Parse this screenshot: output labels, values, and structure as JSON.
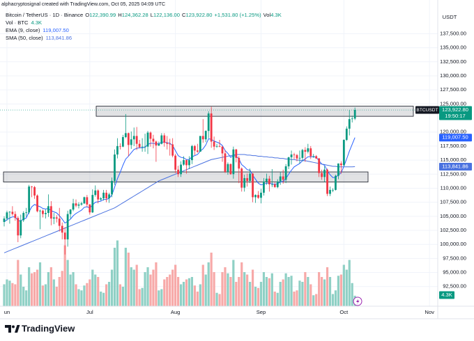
{
  "watermark": "alphacryptosignal created with TradingView.com, Oct 05, 2025 04:09 UTC",
  "logo": "TradingView",
  "chart_data": {
    "type": "candlestick",
    "currency": "USDT",
    "symbol": "Bitcoin / TetherUS · 1D · Binance",
    "header_fields": [
      {
        "key": "O",
        "text": "122,390.99"
      },
      {
        "key": "H",
        "text": "124,362.28"
      },
      {
        "key": "L",
        "text": "122,136.00"
      }
    ],
    "close_key": "C",
    "change": "+1,531.80 (+1.25%)",
    "vol_key": "Vol",
    "symbol_tag": "BTCUSDT",
    "countdown": "19:50:17",
    "last_price": {
      "value": 123922.8,
      "label": "123,922.80"
    },
    "up_color": "#089981",
    "down_color": "#f23645",
    "volume_up_color": "#8fd0c5",
    "volume_down_color": "#f7a9a8",
    "ylim": [
      89000,
      143500
    ],
    "yticks": [
      {
        "value": 92500,
        "label": "92,500.00"
      },
      {
        "value": 95000,
        "label": "95,000.00"
      },
      {
        "value": 97500,
        "label": "97,500.00"
      },
      {
        "value": 100000,
        "label": "100,000.00"
      },
      {
        "value": 102500,
        "label": "102,500.00"
      },
      {
        "value": 105000,
        "label": "105,000.00"
      },
      {
        "value": 107500,
        "label": "107,500.00"
      },
      {
        "value": 110000,
        "label": "110,000.00"
      },
      {
        "value": 112500,
        "label": "112,500.00"
      },
      {
        "value": 115000,
        "label": "115,000.00"
      },
      {
        "value": 117500,
        "label": "117,500.00"
      },
      {
        "value": 120000,
        "label": "120,000.00"
      },
      {
        "value": 125000,
        "label": "125,000.00"
      },
      {
        "value": 127500,
        "label": "127,500.00"
      },
      {
        "value": 130000,
        "label": "130,000.00"
      },
      {
        "value": 132500,
        "label": "132,500.00"
      },
      {
        "value": 135000,
        "label": "135,000.00"
      },
      {
        "value": 137500,
        "label": "137,500.00"
      }
    ],
    "xticks": [
      {
        "value": 1,
        "label": "un"
      },
      {
        "value": 31,
        "label": "Jul"
      },
      {
        "value": 62,
        "label": "Aug"
      },
      {
        "value": 93,
        "label": "Sep"
      },
      {
        "value": 123,
        "label": "Oct"
      },
      {
        "value": 154,
        "label": "Nov"
      }
    ],
    "grid": true,
    "candles": [
      [
        104000,
        105000,
        103200,
        104600
      ],
      [
        104600,
        106000,
        104200,
        105700
      ],
      [
        105700,
        105900,
        103700,
        105800
      ],
      [
        105800,
        106800,
        105100,
        105400
      ],
      [
        105400,
        105900,
        104200,
        104700
      ],
      [
        104700,
        105000,
        100400,
        101600
      ],
      [
        101600,
        105300,
        101100,
        104300
      ],
      [
        104300,
        105900,
        104000,
        105600
      ],
      [
        105600,
        106500,
        104900,
        105700
      ],
      [
        105700,
        110600,
        105400,
        110300
      ],
      [
        110300,
        110400,
        108400,
        110200
      ],
      [
        110200,
        110400,
        108100,
        108700
      ],
      [
        108700,
        108900,
        105700,
        105900
      ],
      [
        105900,
        106200,
        102700,
        106000
      ],
      [
        106000,
        106200,
        104800,
        105400
      ],
      [
        105400,
        106200,
        104600,
        105600
      ],
      [
        105600,
        108900,
        104900,
        106800
      ],
      [
        106800,
        107700,
        103400,
        104600
      ],
      [
        104600,
        105600,
        103600,
        104800
      ],
      [
        104800,
        105200,
        103900,
        104600
      ],
      [
        104600,
        106500,
        102300,
        103300
      ],
      [
        103300,
        103900,
        100900,
        102100
      ],
      [
        102100,
        103100,
        98200,
        100900
      ],
      [
        100900,
        106000,
        99600,
        105400
      ],
      [
        105400,
        106300,
        104600,
        106200
      ],
      [
        106200,
        108100,
        105900,
        107300
      ],
      [
        107300,
        108000,
        106600,
        106900
      ],
      [
        106900,
        107500,
        106400,
        107100
      ],
      [
        107100,
        107600,
        106900,
        107300
      ],
      [
        107300,
        108500,
        107200,
        108400
      ],
      [
        108400,
        108800,
        106700,
        107100
      ],
      [
        107100,
        107200,
        105300,
        105700
      ],
      [
        105700,
        109800,
        105600,
        108800
      ],
      [
        108800,
        110500,
        108500,
        109600
      ],
      [
        109600,
        109800,
        107300,
        108000
      ],
      [
        108000,
        108400,
        107800,
        108200
      ],
      [
        108200,
        109700,
        107800,
        109200
      ],
      [
        109200,
        109700,
        107500,
        108200
      ],
      [
        108200,
        109200,
        107400,
        108900
      ],
      [
        108900,
        111900,
        108400,
        111300
      ],
      [
        111300,
        116900,
        110600,
        116000
      ],
      [
        116000,
        118900,
        115300,
        117500
      ],
      [
        117500,
        118000,
        116900,
        117400
      ],
      [
        117400,
        119500,
        117300,
        119100
      ],
      [
        119100,
        123200,
        118900,
        119800
      ],
      [
        119800,
        119900,
        115700,
        117700
      ],
      [
        117700,
        120100,
        117000,
        118700
      ],
      [
        118700,
        120800,
        117500,
        119300
      ],
      [
        119300,
        120900,
        116800,
        117900
      ],
      [
        117900,
        118600,
        117100,
        117300
      ],
      [
        117300,
        118900,
        116500,
        117400
      ],
      [
        117400,
        119700,
        116500,
        117400
      ],
      [
        117400,
        120200,
        116100,
        119900
      ],
      [
        119900,
        120100,
        117400,
        118800
      ],
      [
        118800,
        119500,
        117100,
        118300
      ],
      [
        118300,
        118500,
        114700,
        117600
      ],
      [
        117600,
        118300,
        117500,
        117900
      ],
      [
        117900,
        119800,
        117800,
        119400
      ],
      [
        119400,
        119800,
        117400,
        118100
      ],
      [
        118100,
        119300,
        116900,
        117900
      ],
      [
        117900,
        118800,
        115800,
        117800
      ],
      [
        117800,
        118900,
        115500,
        115800
      ],
      [
        115800,
        116100,
        112700,
        113300
      ],
      [
        113300,
        114000,
        112000,
        112500
      ],
      [
        112500,
        114800,
        112000,
        114200
      ],
      [
        114200,
        115700,
        114000,
        115000
      ],
      [
        115000,
        115100,
        112600,
        114100
      ],
      [
        114100,
        115700,
        113400,
        115000
      ],
      [
        115000,
        117700,
        114300,
        117500
      ],
      [
        117500,
        117700,
        115900,
        116700
      ],
      [
        116700,
        117900,
        116300,
        116500
      ],
      [
        116500,
        119300,
        116500,
        119300
      ],
      [
        119300,
        122300,
        118100,
        118700
      ],
      [
        118700,
        120300,
        118200,
        120200
      ],
      [
        120200,
        123700,
        118900,
        123300
      ],
      [
        123300,
        124500,
        117200,
        118300
      ],
      [
        118300,
        119200,
        116800,
        117400
      ],
      [
        117400,
        117900,
        117200,
        117500
      ],
      [
        117500,
        118600,
        117300,
        117400
      ],
      [
        117400,
        117500,
        114700,
        116200
      ],
      [
        116200,
        116800,
        112700,
        112900
      ],
      [
        112900,
        114600,
        112400,
        114300
      ],
      [
        114300,
        114400,
        112400,
        112500
      ],
      [
        112500,
        117400,
        111700,
        116900
      ],
      [
        116900,
        117000,
        114600,
        115400
      ],
      [
        115400,
        115700,
        110900,
        113500
      ],
      [
        113500,
        113700,
        109400,
        110100
      ],
      [
        110100,
        112400,
        109400,
        111800
      ],
      [
        111800,
        112600,
        110300,
        111300
      ],
      [
        111300,
        113500,
        110900,
        112600
      ],
      [
        112600,
        112700,
        107500,
        108400
      ],
      [
        108400,
        108900,
        107400,
        108800
      ],
      [
        108800,
        109500,
        108100,
        108300
      ],
      [
        108300,
        109900,
        107300,
        109200
      ],
      [
        109200,
        111800,
        108700,
        111200
      ],
      [
        111200,
        112600,
        110600,
        111700
      ],
      [
        111700,
        112200,
        109400,
        110700
      ],
      [
        110700,
        113400,
        110200,
        110700
      ],
      [
        110700,
        111000,
        110100,
        110200
      ],
      [
        110200,
        111600,
        110000,
        111200
      ],
      [
        111200,
        112900,
        110600,
        112100
      ],
      [
        112100,
        113300,
        110800,
        111500
      ],
      [
        111500,
        114300,
        110900,
        113900
      ],
      [
        113900,
        115600,
        113400,
        115500
      ],
      [
        115500,
        116700,
        114200,
        116000
      ],
      [
        116000,
        116300,
        115200,
        115900
      ],
      [
        115900,
        116100,
        114800,
        115300
      ],
      [
        115300,
        116700,
        114400,
        115400
      ],
      [
        115400,
        117000,
        114800,
        116800
      ],
      [
        116800,
        117300,
        114700,
        116500
      ],
      [
        116500,
        117900,
        116200,
        117100
      ],
      [
        117100,
        117500,
        115200,
        115700
      ],
      [
        115700,
        116100,
        115400,
        115700
      ],
      [
        115700,
        115900,
        115200,
        115300
      ],
      [
        115300,
        115400,
        112000,
        112700
      ],
      [
        112700,
        113300,
        111500,
        112000
      ],
      [
        112000,
        113900,
        111100,
        113300
      ],
      [
        113300,
        113500,
        108600,
        109000
      ],
      [
        109000,
        110300,
        108600,
        109700
      ],
      [
        109700,
        110000,
        109300,
        109700
      ],
      [
        109700,
        112400,
        109600,
        112200
      ],
      [
        112200,
        114400,
        111600,
        114400
      ],
      [
        114400,
        114800,
        112600,
        114100
      ],
      [
        114100,
        118700,
        113900,
        118600
      ],
      [
        118600,
        121000,
        118400,
        120600
      ],
      [
        120600,
        123900,
        119400,
        122300
      ],
      [
        122300,
        122900,
        121700,
        122400
      ],
      [
        122390.99,
        124362.28,
        122136,
        123922.8
      ]
    ],
    "volume": {
      "name": "Vol · BTC",
      "last_label": "4.3K",
      "values": [
        9000,
        11000,
        10500,
        9500,
        9000,
        19000,
        13000,
        8000,
        6500,
        16000,
        13500,
        14000,
        15000,
        18000,
        8500,
        9000,
        14000,
        16000,
        11000,
        8000,
        12000,
        14500,
        25000,
        19000,
        13000,
        14000,
        9000,
        7000,
        6500,
        8500,
        9500,
        11000,
        15000,
        13000,
        12000,
        6000,
        5500,
        9000,
        10000,
        15000,
        24000,
        27000,
        9000,
        8000,
        24000,
        22000,
        16000,
        15000,
        17000,
        7000,
        7500,
        14000,
        16000,
        13000,
        15000,
        18000,
        6500,
        7000,
        11000,
        12000,
        13000,
        15000,
        17000,
        12000,
        9000,
        10000,
        11000,
        11500,
        12000,
        8500,
        6000,
        9000,
        17000,
        13000,
        18000,
        22000,
        14000,
        5500,
        5000,
        14000,
        16000,
        13500,
        12000,
        19000,
        10000,
        12000,
        18000,
        14000,
        13000,
        10000,
        15000,
        8000,
        7500,
        10000,
        14000,
        12000,
        11500,
        13500,
        6000,
        5500,
        10000,
        11000,
        13500,
        12000,
        12500,
        6000,
        6500,
        10500,
        10000,
        14000,
        12000,
        9000,
        4500,
        5000,
        14000,
        12000,
        11000,
        16000,
        12000,
        5000,
        6500,
        12500,
        13000,
        17000,
        15000,
        19000,
        9500,
        4300
      ]
    },
    "series": [
      {
        "name": "EMA (9, close)",
        "color": "#2962ff",
        "last_label": "119,007.50",
        "values": [
          104000,
          104400,
          104700,
          104900,
          104900,
          104200,
          104200,
          104500,
          104700,
          105800,
          106700,
          107100,
          106900,
          106700,
          106400,
          106300,
          106400,
          106000,
          105800,
          105600,
          105100,
          104500,
          103800,
          104100,
          104500,
          105100,
          105500,
          105800,
          106100,
          106600,
          106700,
          106500,
          107000,
          107500,
          107600,
          107700,
          108000,
          108000,
          108200,
          108800,
          110200,
          111700,
          112800,
          114100,
          115200,
          115700,
          116300,
          116900,
          117100,
          117200,
          117200,
          117300,
          117800,
          118000,
          118000,
          117900,
          117900,
          118200,
          118200,
          118100,
          118000,
          117600,
          116700,
          115800,
          115500,
          115400,
          115100,
          115100,
          115600,
          115800,
          116000,
          116600,
          117000,
          117700,
          118800,
          118700,
          118400,
          118200,
          118000,
          117600,
          116700,
          116200,
          115500,
          115800,
          115700,
          115200,
          114200,
          113800,
          113300,
          113200,
          112300,
          111600,
          110900,
          110600,
          110700,
          110900,
          110900,
          110800,
          110700,
          110800,
          111100,
          111200,
          111700,
          112500,
          113200,
          113800,
          114100,
          114400,
          114900,
          115200,
          115600,
          115600,
          115600,
          115500,
          114900,
          114300,
          114100,
          113100,
          112400,
          111900,
          111900,
          112400,
          112700,
          113900,
          115200,
          116600,
          117800,
          119007.5
        ]
      },
      {
        "name": "SMA (50, close)",
        "color": "#4a72e0",
        "last_label": "113,841.86",
        "values": [
          98500,
          98700,
          98900,
          99100,
          99300,
          99500,
          99700,
          99900,
          100100,
          100300,
          100500,
          100700,
          100900,
          101100,
          101300,
          101500,
          101700,
          101900,
          102100,
          102300,
          102500,
          102700,
          102900,
          103100,
          103300,
          103500,
          103700,
          103900,
          104100,
          104300,
          104500,
          104700,
          104900,
          105100,
          105300,
          105500,
          105700,
          105900,
          106100,
          106300,
          106500,
          106800,
          107100,
          107400,
          107700,
          108000,
          108300,
          108600,
          108900,
          109200,
          109500,
          109800,
          110100,
          110400,
          110700,
          111000,
          111300,
          111500,
          111700,
          111900,
          112100,
          112300,
          112500,
          112700,
          112900,
          113100,
          113300,
          113500,
          113700,
          113900,
          114100,
          114300,
          114500,
          114700,
          114900,
          115100,
          115200,
          115300,
          115400,
          115500,
          115600,
          115700,
          115800,
          115900,
          116000,
          116000,
          116000,
          116000,
          115900,
          115900,
          115800,
          115800,
          115700,
          115700,
          115600,
          115600,
          115500,
          115500,
          115400,
          115400,
          115300,
          115300,
          115200,
          115200,
          115100,
          115100,
          115000,
          115000,
          114900,
          114900,
          114800,
          114700,
          114600,
          114500,
          114400,
          114300,
          114200,
          114100,
          114000,
          113900,
          113900,
          113800,
          113800,
          113800,
          113800,
          113800,
          113800,
          113841.86
        ]
      }
    ],
    "zones": [
      {
        "top": 124600,
        "bottom": 122800
      },
      {
        "top": 112900,
        "bottom": 111100
      }
    ]
  }
}
